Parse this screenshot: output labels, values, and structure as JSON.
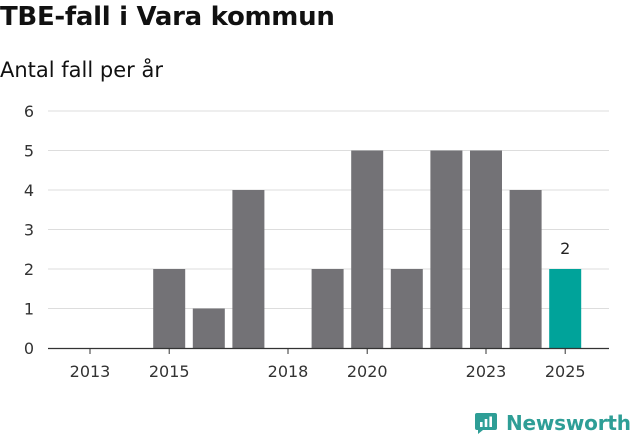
{
  "title": "TBE-fall i Vara kommun",
  "subtitle": "Antal fall per år",
  "brand": {
    "name": "Newsworthy",
    "icon": "newsworthy-logo-icon",
    "color": "#2e9e96"
  },
  "colors": {
    "bar": "#737276",
    "highlight": "#00a39a",
    "grid": "#dddddd",
    "axis": "#333333"
  },
  "chart_data": {
    "type": "bar",
    "title": "TBE-fall i Vara kommun",
    "subtitle": "Antal fall per år",
    "categories": [
      2013,
      2014,
      2015,
      2016,
      2017,
      2018,
      2019,
      2020,
      2021,
      2022,
      2023,
      2024,
      2025
    ],
    "values": [
      0,
      0,
      2,
      1,
      4,
      0,
      2,
      5,
      2,
      5,
      5,
      4,
      2
    ],
    "highlight_index": 12,
    "data_labels": [
      {
        "index": 12,
        "text": "2"
      }
    ],
    "x_tick_labels": [
      "2013",
      "2015",
      "2018",
      "2020",
      "2023",
      "2025"
    ],
    "y_ticks": [
      0,
      1,
      2,
      3,
      4,
      5,
      6
    ],
    "ylim": [
      0,
      6
    ],
    "xlabel": "",
    "ylabel": "",
    "grid": true,
    "legend": false
  }
}
